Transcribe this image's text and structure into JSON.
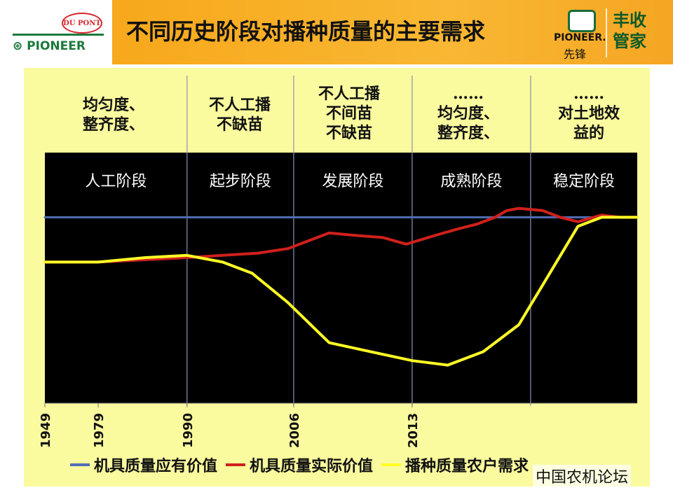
{
  "slide": {
    "title": "不同历史阶段对播种质量的主要需求",
    "logos": {
      "dupont": "DU PONT",
      "pioneer_left": "PIONEER",
      "pioneer_right": "PIONEER.",
      "xianfeng": "先锋",
      "fengshou_line1": "丰收",
      "fengshou_line2": "管家"
    },
    "watermark": "中国农机论坛",
    "colors": {
      "header": "#f7a81b",
      "panel": "#fafa9e",
      "chart_bg": "#000000"
    }
  },
  "requirements": [
    "均匀度、\n整齐度、",
    "不人工播\n不缺苗",
    "不人工播\n不间苗\n不缺苗",
    "……\n均匀度、\n整齐度、",
    "……\n对土地效\n益的"
  ],
  "chart_data": {
    "type": "line",
    "title": "",
    "stages": [
      "人工阶段",
      "起步阶段",
      "发展阶段",
      "成熟阶段",
      "稳定阶段"
    ],
    "x_ticks": [
      "1949",
      "1979",
      "1990",
      "2006",
      "2013"
    ],
    "ylim": [
      0,
      100
    ],
    "grid": false,
    "legend_position": "bottom",
    "series": [
      {
        "name": "机具质量应有价值",
        "color": "#4f6fb5",
        "x": [
          0,
          100
        ],
        "values": [
          78,
          78
        ]
      },
      {
        "name": "机具质量实际价值",
        "color": "#d0201c",
        "x": [
          0,
          9,
          24,
          30,
          36,
          41,
          48,
          52,
          57,
          61,
          66,
          70,
          73,
          76,
          78,
          80,
          84,
          87,
          90,
          94,
          97,
          100
        ],
        "values": [
          58,
          58,
          60,
          61,
          62,
          64,
          71,
          70,
          69,
          66,
          70,
          73,
          75,
          78,
          81,
          82,
          81,
          78,
          76,
          79,
          78,
          78
        ]
      },
      {
        "name": "播种质量农户需求",
        "color": "#ffff26",
        "x": [
          0,
          9,
          17,
          24,
          30,
          35,
          41,
          48,
          55,
          62,
          68,
          74,
          80,
          85,
          90,
          94,
          97,
          100
        ],
        "values": [
          58,
          58,
          60,
          61,
          58,
          53,
          40,
          22,
          18,
          14,
          12,
          18,
          30,
          52,
          74,
          78,
          78,
          78
        ]
      }
    ],
    "stage_boundaries_x": [
      24,
      42,
      62,
      82
    ],
    "tick_positions_x": [
      0,
      9,
      24,
      42,
      62
    ]
  }
}
